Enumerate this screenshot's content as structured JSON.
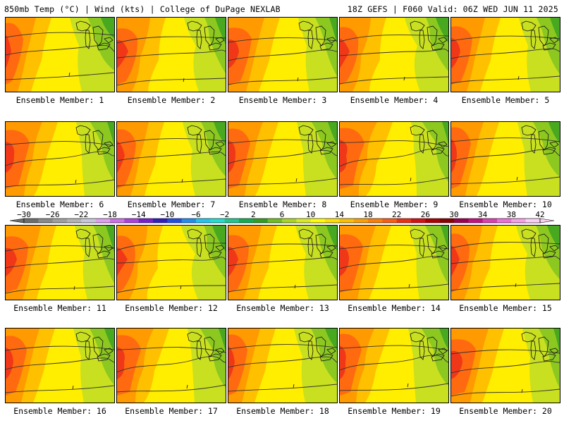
{
  "header": {
    "left": "850mb Temp (°C) | Wind (kts) | College of DuPage NEXLAB",
    "right": "18Z GEFS | F060 Valid: 06Z WED JUN 11 2025"
  },
  "panels": [
    {
      "member": 1,
      "caption": "Ensemble Member: 1"
    },
    {
      "member": 2,
      "caption": "Ensemble Member: 2"
    },
    {
      "member": 3,
      "caption": "Ensemble Member: 3"
    },
    {
      "member": 4,
      "caption": "Ensemble Member: 4"
    },
    {
      "member": 5,
      "caption": "Ensemble Member: 5"
    },
    {
      "member": 6,
      "caption": "Ensemble Member: 6"
    },
    {
      "member": 7,
      "caption": "Ensemble Member: 7"
    },
    {
      "member": 8,
      "caption": "Ensemble Member: 8"
    },
    {
      "member": 9,
      "caption": "Ensemble Member: 9"
    },
    {
      "member": 10,
      "caption": "Ensemble Member: 10"
    },
    {
      "member": 11,
      "caption": "Ensemble Member: 11"
    },
    {
      "member": 12,
      "caption": "Ensemble Member: 12"
    },
    {
      "member": 13,
      "caption": "Ensemble Member: 13"
    },
    {
      "member": 14,
      "caption": "Ensemble Member: 14"
    },
    {
      "member": 15,
      "caption": "Ensemble Member: 15"
    },
    {
      "member": 16,
      "caption": "Ensemble Member: 16"
    },
    {
      "member": 17,
      "caption": "Ensemble Member: 17"
    },
    {
      "member": 18,
      "caption": "Ensemble Member: 18"
    },
    {
      "member": 19,
      "caption": "Ensemble Member: 19"
    },
    {
      "member": 20,
      "caption": "Ensemble Member: 20"
    }
  ],
  "colorbar": {
    "tick_labels": [
      "−30",
      "−26",
      "−22",
      "−18",
      "−14",
      "−10",
      "−6",
      "−2",
      "2",
      "6",
      "10",
      "14",
      "18",
      "22",
      "26",
      "30",
      "34",
      "38",
      "42"
    ],
    "colors": [
      "#6e6e6e",
      "#8a8a8a",
      "#a0a0a0",
      "#b4b4b4",
      "#c8c8dc",
      "#e0a0f0",
      "#d070e8",
      "#b040e0",
      "#7820d0",
      "#3020c0",
      "#2050e8",
      "#2090f0",
      "#20c8f0",
      "#20e0d0",
      "#20c890",
      "#10b050",
      "#30a020",
      "#70c020",
      "#a8d820",
      "#d8ec20",
      "#ffff00",
      "#ffe000",
      "#ffc000",
      "#ffa000",
      "#ff8000",
      "#ff5c10",
      "#f03010",
      "#d81010",
      "#b00000",
      "#8c0000",
      "#a00050",
      "#c81080",
      "#e040b0",
      "#f070d8",
      "#f8a0e8",
      "#fcd0f4"
    ]
  }
}
